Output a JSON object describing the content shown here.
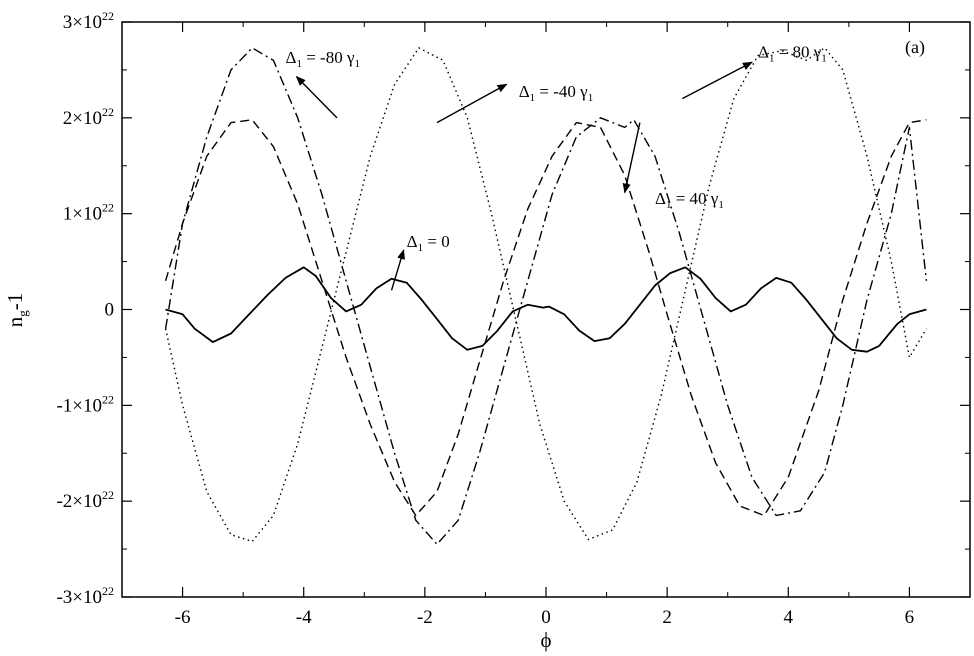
{
  "chart_data": {
    "type": "line",
    "panel_label": "(a)",
    "xlabel": "ϕ",
    "ylabel": {
      "main": "n",
      "sub": "g",
      "tail": "-1"
    },
    "xlim": [
      -7,
      7
    ],
    "ylim": [
      -3e+22,
      3e+22
    ],
    "grid": false,
    "x_ticks": [
      {
        "value": -6,
        "label": "-6"
      },
      {
        "value": -4,
        "label": "-4"
      },
      {
        "value": -2,
        "label": "-2"
      },
      {
        "value": 0,
        "label": "0"
      },
      {
        "value": 2,
        "label": "2"
      },
      {
        "value": 4,
        "label": "4"
      },
      {
        "value": 6,
        "label": "6"
      }
    ],
    "y_ticks": [
      {
        "value": 3e+22,
        "base": "3×10",
        "exp": "22"
      },
      {
        "value": 2e+22,
        "base": "2×10",
        "exp": "22"
      },
      {
        "value": 1e+22,
        "base": "1×10",
        "exp": "22"
      },
      {
        "value": 0,
        "base": "0",
        "exp": ""
      },
      {
        "value": -1e+22,
        "base": "-1×10",
        "exp": "22"
      },
      {
        "value": -2e+22,
        "base": "-2×10",
        "exp": "22"
      },
      {
        "value": -3e+22,
        "base": "-3×10",
        "exp": "22"
      }
    ],
    "series": [
      {
        "style": "solid",
        "x": [
          -6.28,
          -6.0,
          -5.8,
          -5.5,
          -5.2,
          -4.9,
          -4.6,
          -4.3,
          -4.0,
          -3.8,
          -3.55,
          -3.3,
          -3.05,
          -2.8,
          -2.55,
          -2.3,
          -2.05,
          -1.8,
          -1.55,
          -1.3,
          -1.05,
          -0.8,
          -0.55,
          -0.3,
          -0.05,
          0.05,
          0.3,
          0.55,
          0.8,
          1.05,
          1.3,
          1.55,
          1.8,
          2.05,
          2.3,
          2.55,
          2.8,
          3.05,
          3.3,
          3.55,
          3.8,
          4.05,
          4.3,
          4.55,
          4.8,
          5.05,
          5.3,
          5.5,
          5.8,
          6.0,
          6.28
        ],
        "y": [
          0.0,
          -5e+20,
          -2e+21,
          -3.4e+21,
          -2.5e+21,
          -5e+20,
          1.5e+21,
          3.3e+21,
          4.4e+21,
          3.5e+21,
          1.2e+21,
          -2e+20,
          5e+20,
          2.2e+21,
          3.2e+21,
          2.8e+21,
          1e+21,
          -1e+21,
          -3e+21,
          -4.2e+21,
          -3.8e+21,
          -2.2e+21,
          -2e+20,
          5e+20,
          2e+20,
          3e+20,
          -5e+20,
          -2.2e+21,
          -3.3e+21,
          -3e+21,
          -1.5e+21,
          5e+20,
          2.5e+21,
          3.8e+21,
          4.4e+21,
          3.2e+21,
          1.2e+21,
          -2e+20,
          5e+20,
          2.2e+21,
          3.3e+21,
          2.8e+21,
          1e+21,
          -1e+21,
          -3e+21,
          -4.2e+21,
          -4.4e+21,
          -3.8e+21,
          -1.5e+21,
          -5e+20,
          0.0
        ]
      },
      {
        "style": "dashed",
        "x": [
          -6.28,
          -6.0,
          -5.6,
          -5.2,
          -4.85,
          -4.5,
          -4.1,
          -3.7,
          -3.3,
          -2.9,
          -2.5,
          -2.15,
          -1.8,
          -1.45,
          -1.1,
          -0.7,
          -0.3,
          0.1,
          0.5,
          0.9,
          1.3,
          1.7,
          2.0,
          2.4,
          2.8,
          3.2,
          3.6,
          4.0,
          4.5,
          4.9,
          5.3,
          5.7,
          6.0,
          6.28
        ],
        "y": [
          3e+21,
          9e+21,
          1.6e+22,
          1.95e+22,
          1.98e+22,
          1.7e+22,
          1.1e+22,
          3e+21,
          -5e+21,
          -1.2e+22,
          -1.8e+22,
          -2.15e+22,
          -1.9e+22,
          -1.3e+22,
          -5.5e+21,
          3e+21,
          1.05e+22,
          1.6e+22,
          1.95e+22,
          1.9e+22,
          1.4e+22,
          6e+21,
          -5e+20,
          -9e+21,
          -1.6e+22,
          -2.05e+22,
          -2.15e+22,
          -1.75e+22,
          -8.5e+21,
          1e+21,
          9e+21,
          1.6e+22,
          1.95e+22,
          1.98e+22
        ]
      },
      {
        "style": "dash-dot",
        "x": [
          -6.28,
          -6.0,
          -5.6,
          -5.2,
          -4.85,
          -4.5,
          -4.1,
          -3.7,
          -3.3,
          -2.9,
          -2.5,
          -2.15,
          -1.8,
          -1.45,
          -1.1,
          -0.7,
          -0.3,
          0.1,
          0.5,
          0.9,
          1.3,
          1.45,
          1.8,
          2.2,
          2.6,
          3.0,
          3.4,
          3.8,
          4.2,
          4.6,
          4.9,
          5.3,
          5.7,
          6.0,
          6.28
        ],
        "y": [
          -2e+21,
          9e+21,
          1.8e+22,
          2.5e+22,
          2.73e+22,
          2.6e+22,
          2e+22,
          1.2e+22,
          3e+21,
          -6e+21,
          -1.5e+22,
          -2.2e+22,
          -2.45e+22,
          -2.2e+22,
          -1.5e+22,
          -6e+21,
          3e+21,
          1.2e+22,
          1.8e+22,
          2e+22,
          1.9e+22,
          1.98e+22,
          1.6e+22,
          8e+21,
          -1e+21,
          -1e+22,
          -1.75e+22,
          -2.15e+22,
          -2.1e+22,
          -1.7e+22,
          -1e+22,
          1e+21,
          1e+22,
          1.9e+22,
          3e+21
        ]
      },
      {
        "style": "dotted",
        "x": [
          -6.28,
          -6.0,
          -5.6,
          -5.2,
          -4.85,
          -4.5,
          -4.1,
          -3.7,
          -3.3,
          -2.9,
          -2.5,
          -2.1,
          -1.7,
          -1.3,
          -0.9,
          -0.5,
          -0.1,
          0.3,
          0.7,
          1.1,
          1.5,
          1.9,
          2.3,
          2.7,
          3.1,
          3.5,
          3.9,
          4.3,
          4.6,
          4.9,
          5.3,
          5.7,
          6.0,
          6.28
        ],
        "y": [
          -2e+21,
          -1e+22,
          -1.9e+22,
          -2.35e+22,
          -2.42e+22,
          -2.15e+22,
          -1.4e+22,
          -4e+21,
          6e+21,
          1.6e+22,
          2.35e+22,
          2.73e+22,
          2.6e+22,
          2e+22,
          1e+22,
          -1e+21,
          -1.2e+22,
          -2e+22,
          -2.4e+22,
          -2.3e+22,
          -1.8e+22,
          -9e+21,
          2e+21,
          1.3e+22,
          2.2e+22,
          2.65e+22,
          2.7e+22,
          2.6e+22,
          2.73e+22,
          2.5e+22,
          1.6e+22,
          5e+21,
          -5e+21,
          -2e+21
        ]
      }
    ],
    "annotations": [
      {
        "name": "annotation-minus-80",
        "delta": "Δ",
        "sub": "1",
        "value": " = -80 γ",
        "unit_sub": "1",
        "tx": -4.3,
        "ty": 2.57e+22,
        "ax1": -3.45,
        "ay1": 2e+22,
        "ax2": -4.12,
        "ay2": 2.43e+22
      },
      {
        "name": "annotation-minus-40",
        "delta": "Δ",
        "sub": "1",
        "value": " = -40 γ",
        "unit_sub": "1",
        "tx": -0.45,
        "ty": 2.22e+22,
        "ax1": -1.8,
        "ay1": 1.95e+22,
        "ax2": -0.65,
        "ay2": 2.35e+22
      },
      {
        "name": "annotation-plus-80",
        "delta": "Δ",
        "sub": "1",
        "value": " = 80 γ",
        "unit_sub": "1",
        "tx": 3.5,
        "ty": 2.63e+22,
        "ax1": 2.25,
        "ay1": 2.2e+22,
        "ax2": 3.4,
        "ay2": 2.58e+22
      },
      {
        "name": "annotation-plus-40",
        "delta": "Δ",
        "sub": "1",
        "value": " = 40 γ",
        "unit_sub": "1",
        "tx": 1.8,
        "ty": 1.1e+22,
        "ax1": 1.55,
        "ay1": 1.95e+22,
        "ax2": 1.3,
        "ay2": 1.22e+22
      },
      {
        "name": "annotation-zero",
        "delta": "Δ",
        "sub": "1",
        "value": " = 0",
        "unit_sub": "",
        "tx": -2.3,
        "ty": 6.5e+21,
        "ax1": -2.55,
        "ay1": 2e+21,
        "ax2": -2.35,
        "ay2": 6.2e+21
      }
    ]
  }
}
